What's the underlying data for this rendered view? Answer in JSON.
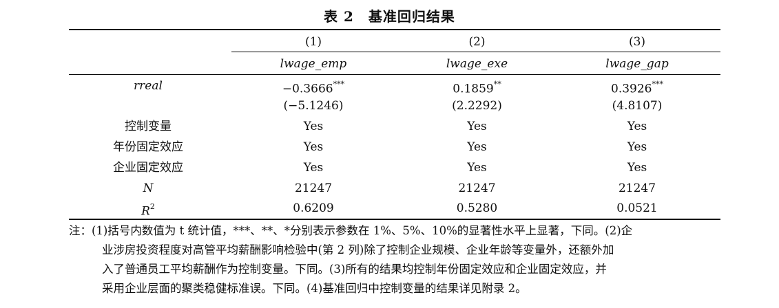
{
  "title": "表 2　基准回归结果",
  "columns": [
    {
      "index": "(1)",
      "depvar": "lwage_emp"
    },
    {
      "index": "(2)",
      "depvar": "lwage_exe"
    },
    {
      "index": "(3)",
      "depvar": "lwage_gap"
    }
  ],
  "rows": [
    {
      "label": "rreal",
      "values": [
        "−0.3666",
        "0.1859",
        "0.3926"
      ],
      "stars": [
        "***",
        "**",
        "***"
      ]
    },
    {
      "label": "",
      "values": [
        "(−5.1246)",
        "(2.2292)",
        "(4.8107)"
      ]
    },
    {
      "label": "控制变量",
      "values": [
        "Yes",
        "Yes",
        "Yes"
      ]
    },
    {
      "label": "年份固定效应",
      "values": [
        "Yes",
        "Yes",
        "Yes"
      ]
    },
    {
      "label": "企业固定效应",
      "values": [
        "Yes",
        "Yes",
        "Yes"
      ]
    },
    {
      "label": "N",
      "values": [
        "21247",
        "21247",
        "21247"
      ]
    },
    {
      "label": "R",
      "label_sup": "2",
      "values": [
        "0.6209",
        "0.5280",
        "0.0521"
      ]
    }
  ],
  "note": {
    "lines": [
      "注：(1)括号内数值为 t 统计值，***、**、*分别表示参数在 1%、5%、10%的显著性水平上显著，下同。(2)企",
      "业涉房投资程度对高管平均薪酬影响检验中(第 2 列)除了控制企业规模、企业年龄等变量外，还额外加",
      "入了普通员工平均薪酬作为控制变量。下同。(3)所有的结果均控制年份固定效应和企业固定效应，并",
      "采用企业层面的聚类稳健标准误。下同。(4)基准回归中控制变量的结果详见附录 2。"
    ]
  }
}
